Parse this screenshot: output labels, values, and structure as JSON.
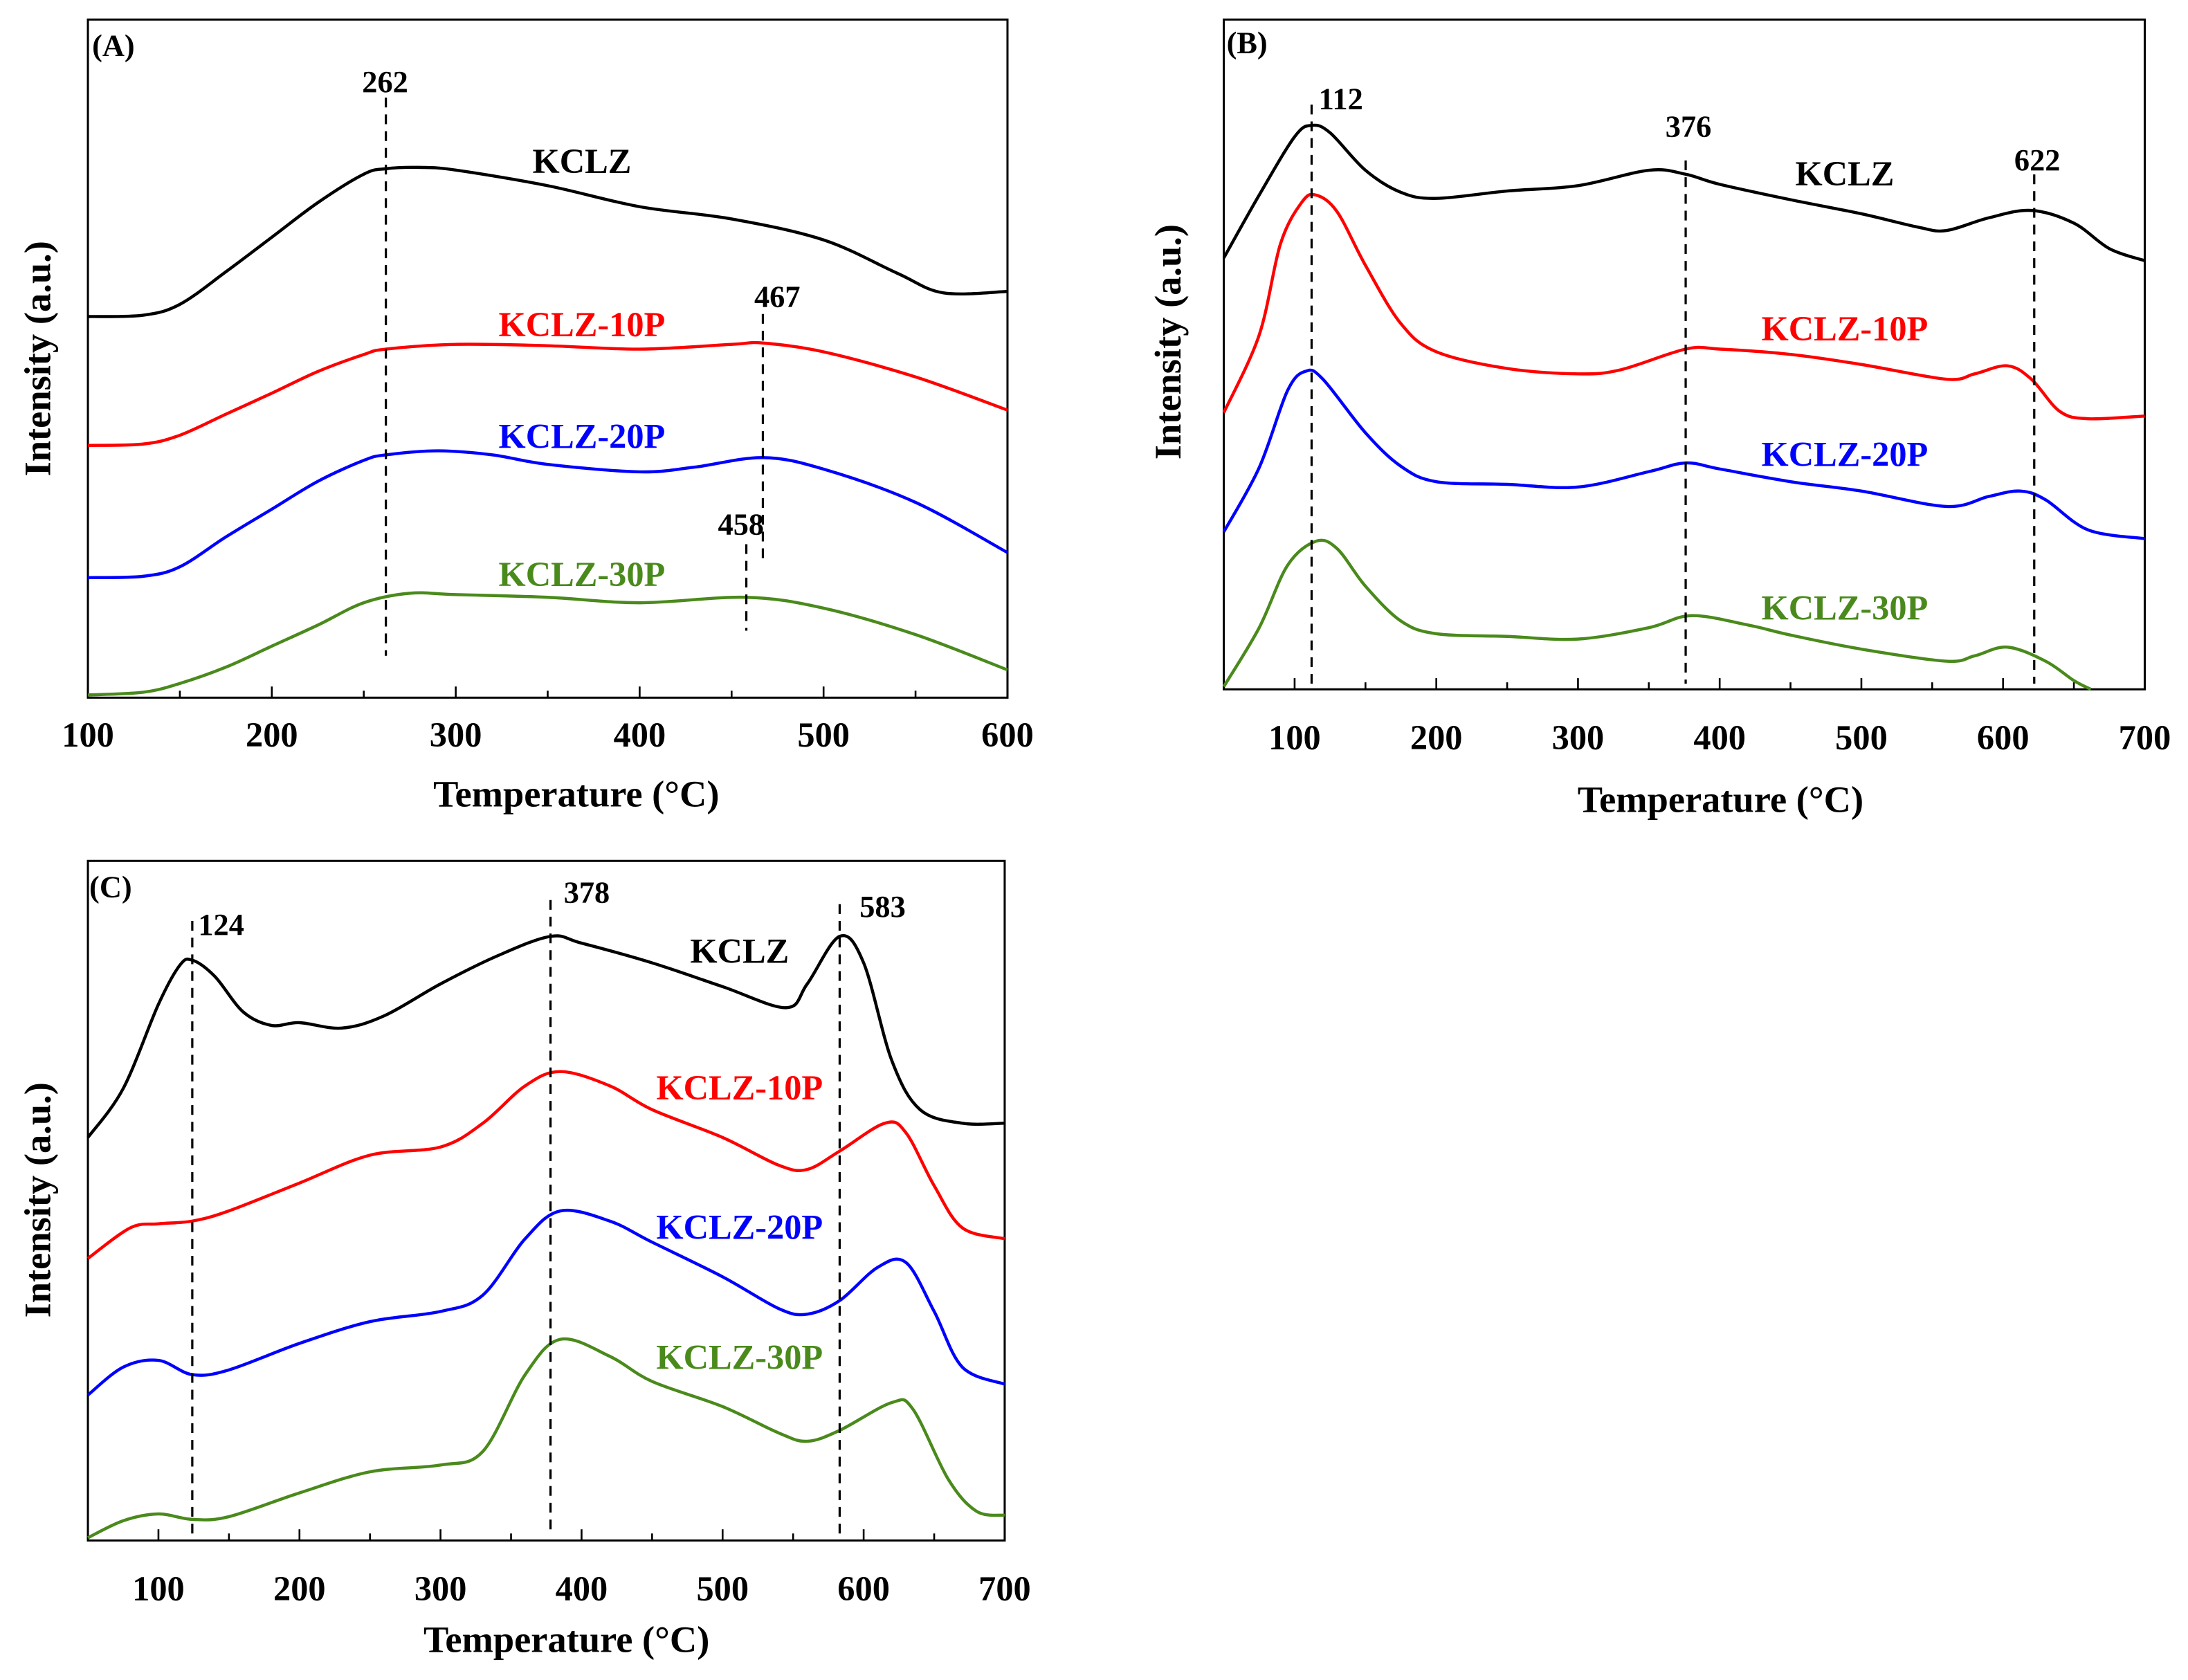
{
  "chart_data": [
    {
      "type": "line",
      "panel_label": "(A)",
      "xlabel": "Temperature (°C)",
      "ylabel": "Intensity (a.u.)",
      "xlim": [
        100,
        600
      ],
      "ylim": [
        0,
        100
      ],
      "xticks": [
        "100",
        "200",
        "300",
        "400",
        "500",
        "600"
      ],
      "grid": false,
      "peaks": [
        {
          "x": 262,
          "label": "262"
        },
        {
          "x": 467,
          "label": "467"
        },
        {
          "x": 458,
          "label": "458"
        }
      ],
      "series": [
        {
          "name": "KCLZ",
          "color": "#000000",
          "points": [
            [
              100,
              56.2
            ],
            [
              130,
              56.4
            ],
            [
              150,
              58.0
            ],
            [
              175,
              62.8
            ],
            [
              200,
              67.9
            ],
            [
              225,
              73.0
            ],
            [
              250,
              77.2
            ],
            [
              262,
              78.0
            ],
            [
              280,
              78.2
            ],
            [
              300,
              77.8
            ],
            [
              350,
              75.5
            ],
            [
              400,
              72.4
            ],
            [
              450,
              70.6
            ],
            [
              500,
              67.5
            ],
            [
              540,
              62.6
            ],
            [
              565,
              59.7
            ],
            [
              600,
              59.9
            ]
          ]
        },
        {
          "name": "KCLZ-10P",
          "color": "#ff0000",
          "points": [
            [
              100,
              37.2
            ],
            [
              130,
              37.4
            ],
            [
              150,
              38.7
            ],
            [
              175,
              41.8
            ],
            [
              200,
              44.9
            ],
            [
              225,
              48.1
            ],
            [
              250,
              50.6
            ],
            [
              262,
              51.4
            ],
            [
              300,
              52.1
            ],
            [
              350,
              51.9
            ],
            [
              400,
              51.4
            ],
            [
              450,
              52.1
            ],
            [
              467,
              52.3
            ],
            [
              500,
              51.0
            ],
            [
              550,
              47.3
            ],
            [
              600,
              42.4
            ]
          ]
        },
        {
          "name": "KCLZ-20P",
          "color": "#0000ff",
          "points": [
            [
              100,
              17.7
            ],
            [
              130,
              17.9
            ],
            [
              150,
              19.3
            ],
            [
              175,
              23.7
            ],
            [
              200,
              27.8
            ],
            [
              225,
              31.9
            ],
            [
              250,
              35.0
            ],
            [
              262,
              35.8
            ],
            [
              290,
              36.4
            ],
            [
              320,
              35.8
            ],
            [
              350,
              34.4
            ],
            [
              400,
              33.3
            ],
            [
              430,
              34.0
            ],
            [
              467,
              35.4
            ],
            [
              500,
              33.7
            ],
            [
              550,
              28.8
            ],
            [
              600,
              21.4
            ]
          ]
        },
        {
          "name": "KCLZ-30P",
          "color": "#4a8a1c",
          "points": [
            [
              100,
              0.4
            ],
            [
              130,
              0.8
            ],
            [
              150,
              2.1
            ],
            [
              175,
              4.5
            ],
            [
              200,
              7.6
            ],
            [
              225,
              10.7
            ],
            [
              250,
              14.0
            ],
            [
              275,
              15.4
            ],
            [
              300,
              15.2
            ],
            [
              350,
              14.8
            ],
            [
              400,
              14.0
            ],
            [
              458,
              14.8
            ],
            [
              500,
              13.2
            ],
            [
              550,
              9.3
            ],
            [
              600,
              4.1
            ]
          ]
        }
      ]
    },
    {
      "type": "line",
      "panel_label": "(B)",
      "xlabel": "Temperature (°C)",
      "ylabel": "Intensity (a.u.)",
      "xlim": [
        50,
        700
      ],
      "ylim": [
        0,
        100
      ],
      "xticks": [
        "100",
        "200",
        "300",
        "400",
        "500",
        "600",
        "700"
      ],
      "grid": false,
      "peaks": [
        {
          "x": 112,
          "label": "112"
        },
        {
          "x": 376,
          "label": "376"
        },
        {
          "x": 622,
          "label": "622"
        }
      ],
      "series": [
        {
          "name": "KCLZ",
          "color": "#000000",
          "points": [
            [
              50,
              64.4
            ],
            [
              75,
              73.8
            ],
            [
              100,
              82.5
            ],
            [
              112,
              84.2
            ],
            [
              125,
              83.1
            ],
            [
              150,
              77.5
            ],
            [
              175,
              74.2
            ],
            [
              200,
              73.3
            ],
            [
              250,
              74.4
            ],
            [
              300,
              75.2
            ],
            [
              350,
              77.5
            ],
            [
              376,
              76.9
            ],
            [
              400,
              75.4
            ],
            [
              450,
              73.1
            ],
            [
              500,
              71.0
            ],
            [
              540,
              69.0
            ],
            [
              560,
              68.5
            ],
            [
              590,
              70.4
            ],
            [
              620,
              71.5
            ],
            [
              650,
              69.6
            ],
            [
              675,
              65.8
            ],
            [
              700,
              64.0
            ]
          ]
        },
        {
          "name": "KCLZ-10P",
          "color": "#ff0000",
          "points": [
            [
              50,
              41.3
            ],
            [
              75,
              52.9
            ],
            [
              90,
              66.5
            ],
            [
              105,
              72.7
            ],
            [
              115,
              73.8
            ],
            [
              130,
              71.3
            ],
            [
              150,
              63.3
            ],
            [
              175,
              54.6
            ],
            [
              200,
              50.4
            ],
            [
              250,
              47.9
            ],
            [
              300,
              47.1
            ],
            [
              330,
              47.7
            ],
            [
              376,
              50.8
            ],
            [
              400,
              50.8
            ],
            [
              450,
              50.0
            ],
            [
              500,
              48.5
            ],
            [
              560,
              46.3
            ],
            [
              580,
              47.1
            ],
            [
              603,
              48.3
            ],
            [
              620,
              46.3
            ],
            [
              640,
              41.5
            ],
            [
              660,
              40.4
            ],
            [
              700,
              40.8
            ]
          ]
        },
        {
          "name": "KCLZ-20P",
          "color": "#0000ff",
          "points": [
            [
              50,
              23.5
            ],
            [
              75,
              33.1
            ],
            [
              95,
              44.6
            ],
            [
              108,
              47.5
            ],
            [
              120,
              46.3
            ],
            [
              150,
              38.3
            ],
            [
              175,
              33.3
            ],
            [
              200,
              31.0
            ],
            [
              250,
              30.6
            ],
            [
              300,
              30.2
            ],
            [
              350,
              32.5
            ],
            [
              376,
              33.8
            ],
            [
              400,
              32.9
            ],
            [
              450,
              31.0
            ],
            [
              500,
              29.6
            ],
            [
              560,
              27.3
            ],
            [
              590,
              28.8
            ],
            [
              612,
              29.6
            ],
            [
              630,
              28.3
            ],
            [
              660,
              23.8
            ],
            [
              700,
              22.5
            ]
          ]
        },
        {
          "name": "KCLZ-30P",
          "color": "#4a8a1c",
          "points": [
            [
              50,
              0.4
            ],
            [
              75,
              9.2
            ],
            [
              95,
              18.5
            ],
            [
              115,
              22.1
            ],
            [
              130,
              21.0
            ],
            [
              150,
              15.4
            ],
            [
              175,
              10.2
            ],
            [
              200,
              8.3
            ],
            [
              250,
              7.9
            ],
            [
              300,
              7.5
            ],
            [
              350,
              9.2
            ],
            [
              380,
              11.0
            ],
            [
              420,
              9.6
            ],
            [
              450,
              8.1
            ],
            [
              500,
              6.0
            ],
            [
              560,
              4.2
            ],
            [
              580,
              5.0
            ],
            [
              603,
              6.3
            ],
            [
              630,
              4.2
            ],
            [
              650,
              1.3
            ],
            [
              662,
              0
            ]
          ]
        }
      ]
    },
    {
      "type": "line",
      "panel_label": "(C)",
      "xlabel": "Temperature (°C)",
      "ylabel": "Intensity (a.u.)",
      "xlim": [
        50,
        700
      ],
      "ylim": [
        0,
        100
      ],
      "xticks": [
        "100",
        "200",
        "300",
        "400",
        "500",
        "600",
        "700"
      ],
      "grid": false,
      "peaks": [
        {
          "x": 124,
          "label": "124"
        },
        {
          "x": 378,
          "label": "378"
        },
        {
          "x": 583,
          "label": "583"
        }
      ],
      "series": [
        {
          "name": "KCLZ",
          "color": "#000000",
          "points": [
            [
              50,
              59.3
            ],
            [
              75,
              66.5
            ],
            [
              100,
              78.9
            ],
            [
              115,
              84.6
            ],
            [
              124,
              85.4
            ],
            [
              140,
              83.0
            ],
            [
              160,
              77.8
            ],
            [
              180,
              75.8
            ],
            [
              200,
              76.2
            ],
            [
              230,
              75.4
            ],
            [
              260,
              77.2
            ],
            [
              300,
              81.9
            ],
            [
              340,
              86.0
            ],
            [
              378,
              88.9
            ],
            [
              400,
              87.9
            ],
            [
              450,
              85.0
            ],
            [
              500,
              81.5
            ],
            [
              545,
              78.4
            ],
            [
              560,
              81.9
            ],
            [
              583,
              88.9
            ],
            [
              600,
              85.0
            ],
            [
              620,
              70.6
            ],
            [
              640,
              63.4
            ],
            [
              670,
              61.4
            ],
            [
              700,
              61.4
            ]
          ]
        },
        {
          "name": "KCLZ-10P",
          "color": "#ff0000",
          "points": [
            [
              50,
              41.5
            ],
            [
              80,
              46.0
            ],
            [
              100,
              46.6
            ],
            [
              124,
              47.0
            ],
            [
              150,
              48.5
            ],
            [
              200,
              52.6
            ],
            [
              250,
              56.7
            ],
            [
              300,
              57.9
            ],
            [
              330,
              61.4
            ],
            [
              360,
              66.9
            ],
            [
              385,
              69.0
            ],
            [
              420,
              66.9
            ],
            [
              450,
              63.4
            ],
            [
              500,
              59.3
            ],
            [
              540,
              55.2
            ],
            [
              560,
              54.6
            ],
            [
              583,
              57.3
            ],
            [
              615,
              61.4
            ],
            [
              630,
              60.0
            ],
            [
              650,
              52.2
            ],
            [
              670,
              46.0
            ],
            [
              700,
              44.4
            ]
          ]
        },
        {
          "name": "KCLZ-20P",
          "color": "#0000ff",
          "points": [
            [
              50,
              21.4
            ],
            [
              75,
              25.5
            ],
            [
              100,
              26.5
            ],
            [
              124,
              24.4
            ],
            [
              150,
              25.1
            ],
            [
              200,
              29.0
            ],
            [
              250,
              32.2
            ],
            [
              300,
              33.7
            ],
            [
              330,
              36.1
            ],
            [
              360,
              44.4
            ],
            [
              385,
              48.5
            ],
            [
              420,
              47.0
            ],
            [
              450,
              43.9
            ],
            [
              500,
              38.8
            ],
            [
              540,
              34.1
            ],
            [
              560,
              33.3
            ],
            [
              583,
              35.3
            ],
            [
              610,
              40.2
            ],
            [
              630,
              40.9
            ],
            [
              650,
              33.7
            ],
            [
              670,
              25.5
            ],
            [
              700,
              23.0
            ]
          ]
        },
        {
          "name": "KCLZ-30P",
          "color": "#4a8a1c",
          "points": [
            [
              50,
              0.4
            ],
            [
              75,
              2.9
            ],
            [
              100,
              3.9
            ],
            [
              124,
              3.1
            ],
            [
              150,
              3.5
            ],
            [
              200,
              7.0
            ],
            [
              250,
              10.1
            ],
            [
              300,
              11.1
            ],
            [
              330,
              13.1
            ],
            [
              360,
              24.4
            ],
            [
              385,
              29.6
            ],
            [
              420,
              27.1
            ],
            [
              450,
              23.4
            ],
            [
              500,
              19.7
            ],
            [
              540,
              15.8
            ],
            [
              560,
              14.6
            ],
            [
              583,
              16.2
            ],
            [
              620,
              20.3
            ],
            [
              635,
              19.3
            ],
            [
              660,
              9.0
            ],
            [
              680,
              4.3
            ],
            [
              700,
              3.7
            ]
          ]
        }
      ]
    }
  ]
}
